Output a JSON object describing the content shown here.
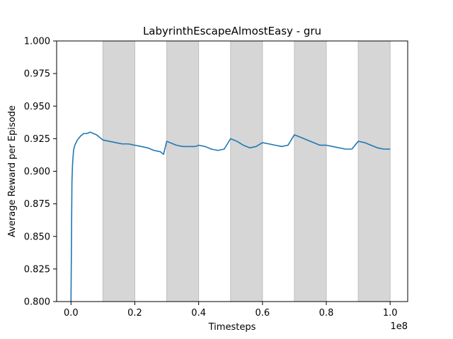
{
  "chart_data": {
    "type": "line",
    "title": "LabyrinthEscapeAlmostEasy - gru",
    "xlabel": "Timesteps",
    "ylabel": "Average Reward per Episode",
    "x_multiplier_label": "1e8",
    "xlim": [
      -0.045,
      1.055
    ],
    "ylim": [
      0.8,
      1.0
    ],
    "x_ticks": [
      0.0,
      0.2,
      0.4,
      0.6,
      0.8,
      1.0
    ],
    "x_tick_labels": [
      "0.0",
      "0.2",
      "0.4",
      "0.6",
      "0.8",
      "1.0"
    ],
    "y_ticks": [
      0.8,
      0.825,
      0.85,
      0.875,
      0.9,
      0.925,
      0.95,
      0.975,
      1.0
    ],
    "y_tick_labels": [
      "0.800",
      "0.825",
      "0.850",
      "0.875",
      "0.900",
      "0.925",
      "0.950",
      "0.975",
      "1.000"
    ],
    "grid": false,
    "shaded_regions": [
      [
        0.1,
        0.2
      ],
      [
        0.3,
        0.4
      ],
      [
        0.5,
        0.6
      ],
      [
        0.7,
        0.8
      ],
      [
        0.9,
        1.0
      ]
    ],
    "colors": {
      "line": "#1f77b4",
      "shade": "#d6d6d6",
      "shade_edge": "#bfbfbf"
    },
    "series": [
      {
        "x": [
          0.0,
          0.003,
          0.005,
          0.008,
          0.012,
          0.02,
          0.03,
          0.04,
          0.05,
          0.06,
          0.07,
          0.08,
          0.09,
          0.1,
          0.12,
          0.14,
          0.16,
          0.18,
          0.2,
          0.22,
          0.24,
          0.26,
          0.28,
          0.29,
          0.3,
          0.31,
          0.33,
          0.35,
          0.37,
          0.39,
          0.4,
          0.42,
          0.44,
          0.46,
          0.48,
          0.5,
          0.52,
          0.54,
          0.56,
          0.58,
          0.6,
          0.62,
          0.64,
          0.66,
          0.68,
          0.7,
          0.72,
          0.74,
          0.76,
          0.78,
          0.8,
          0.82,
          0.84,
          0.86,
          0.88,
          0.9,
          0.92,
          0.94,
          0.96,
          0.98,
          1.0
        ],
        "values": [
          0.8,
          0.892,
          0.906,
          0.916,
          0.92,
          0.924,
          0.927,
          0.929,
          0.929,
          0.93,
          0.929,
          0.928,
          0.926,
          0.924,
          0.923,
          0.922,
          0.921,
          0.921,
          0.92,
          0.919,
          0.918,
          0.916,
          0.915,
          0.913,
          0.923,
          0.922,
          0.92,
          0.919,
          0.919,
          0.919,
          0.92,
          0.919,
          0.917,
          0.916,
          0.917,
          0.925,
          0.923,
          0.92,
          0.918,
          0.919,
          0.922,
          0.921,
          0.92,
          0.919,
          0.92,
          0.928,
          0.926,
          0.924,
          0.922,
          0.92,
          0.92,
          0.919,
          0.918,
          0.917,
          0.917,
          0.923,
          0.922,
          0.92,
          0.918,
          0.917,
          0.917
        ]
      }
    ]
  }
}
